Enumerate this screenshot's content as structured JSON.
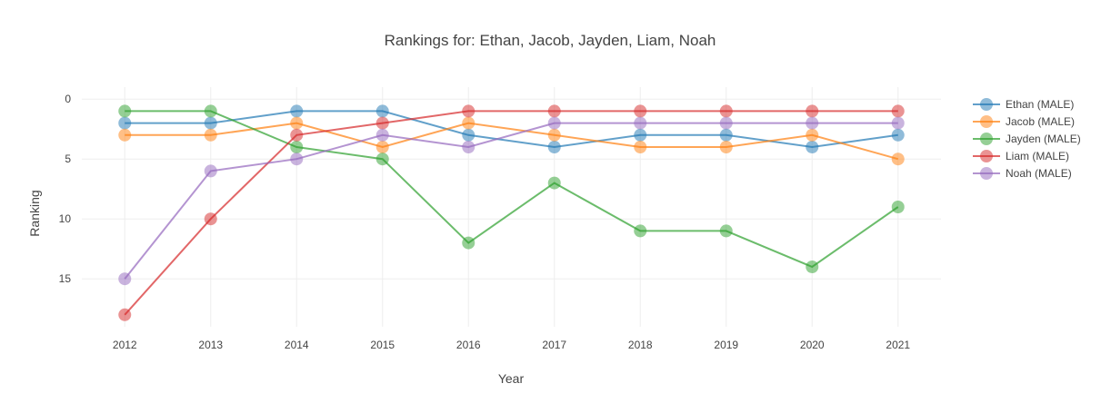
{
  "chart_data": {
    "type": "line",
    "title": "Rankings for: Ethan, Jacob, Jayden, Liam, Noah",
    "xlabel": "Year",
    "ylabel": "Ranking",
    "x": [
      2012,
      2013,
      2014,
      2015,
      2016,
      2017,
      2018,
      2019,
      2020,
      2021
    ],
    "xticks": [
      "2012",
      "2013",
      "2014",
      "2015",
      "2016",
      "2017",
      "2018",
      "2019",
      "2020",
      "2021"
    ],
    "yticks": [
      "0",
      "5",
      "10",
      "15"
    ],
    "ytick_values": [
      0,
      5,
      10,
      15
    ],
    "ylim": [
      19,
      -1
    ],
    "y_reversed": true,
    "grid": true,
    "legend_position": "right",
    "series": [
      {
        "name": "Ethan (MALE)",
        "color": "#1f77b4",
        "values": [
          2,
          2,
          1,
          1,
          3,
          4,
          3,
          3,
          4,
          3
        ]
      },
      {
        "name": "Jacob (MALE)",
        "color": "#ff7f0e",
        "values": [
          3,
          3,
          2,
          4,
          2,
          3,
          4,
          4,
          3,
          5
        ]
      },
      {
        "name": "Jayden (MALE)",
        "color": "#2ca02c",
        "values": [
          1,
          1,
          4,
          5,
          12,
          7,
          11,
          11,
          14,
          9
        ]
      },
      {
        "name": "Liam (MALE)",
        "color": "#d62728",
        "values": [
          18,
          10,
          3,
          2,
          1,
          1,
          1,
          1,
          1,
          1
        ]
      },
      {
        "name": "Noah (MALE)",
        "color": "#9467bd",
        "values": [
          15,
          6,
          5,
          3,
          4,
          2,
          2,
          2,
          2,
          2
        ]
      }
    ]
  }
}
